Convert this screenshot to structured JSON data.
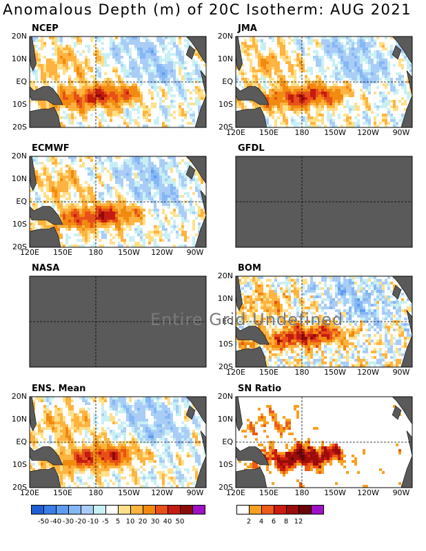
{
  "title": "Anomalous Depth (m) of 20C Isotherm: AUG 2021",
  "chart_data": [
    {
      "type": "heatmap",
      "name": "NCEP",
      "status": "data",
      "xticks": [
        "120E",
        "150E",
        "180",
        "150W",
        "120W",
        "90W"
      ],
      "yticks": [
        "20N",
        "10N",
        "EQ",
        "10S",
        "20S"
      ],
      "xtick_labels_shown": false,
      "ytick_labels_shown": true
    },
    {
      "type": "heatmap",
      "name": "JMA",
      "status": "data",
      "xticks": [
        "120E",
        "150E",
        "180",
        "150W",
        "120W",
        "90W"
      ],
      "yticks": [
        "20N",
        "10N",
        "EQ",
        "10S",
        "20S"
      ],
      "xtick_labels_shown": true,
      "ytick_labels_shown": true
    },
    {
      "type": "heatmap",
      "name": "ECMWF",
      "status": "data",
      "xticks": [
        "120E",
        "150E",
        "180",
        "150W",
        "120W",
        "90W"
      ],
      "yticks": [
        "20N",
        "10N",
        "EQ",
        "10S",
        "20S"
      ],
      "xtick_labels_shown": true,
      "ytick_labels_shown": true
    },
    {
      "type": "heatmap",
      "name": "GFDL",
      "status": "missing",
      "xticks": [
        "120E",
        "150E",
        "180",
        "150W",
        "120W",
        "90W"
      ],
      "yticks": [
        "20N",
        "10N",
        "EQ",
        "10S",
        "20S"
      ],
      "xtick_labels_shown": false,
      "ytick_labels_shown": false
    },
    {
      "type": "heatmap",
      "name": "NASA",
      "status": "missing",
      "xticks": [
        "120E",
        "150E",
        "180",
        "150W",
        "120W",
        "90W"
      ],
      "yticks": [
        "20N",
        "10N",
        "EQ",
        "10S",
        "20S"
      ],
      "xtick_labels_shown": false,
      "ytick_labels_shown": false
    },
    {
      "type": "heatmap",
      "name": "BOM",
      "status": "data",
      "xticks": [
        "120E",
        "150E",
        "180",
        "150W",
        "120W",
        "90W"
      ],
      "yticks": [
        "20N",
        "10N",
        "EQ",
        "10S",
        "20S"
      ],
      "xtick_labels_shown": true,
      "ytick_labels_shown": true
    },
    {
      "type": "heatmap",
      "name": "ENS. Mean",
      "status": "data",
      "xticks": [
        "120E",
        "150E",
        "180",
        "150W",
        "120W",
        "90W"
      ],
      "yticks": [
        "20N",
        "10N",
        "EQ",
        "10S",
        "20S"
      ],
      "xtick_labels_shown": true,
      "ytick_labels_shown": true
    },
    {
      "type": "heatmap",
      "name": "SN Ratio",
      "status": "data",
      "xticks": [
        "120E",
        "150E",
        "180",
        "150W",
        "120W",
        "90W"
      ],
      "yticks": [
        "20N",
        "10N",
        "EQ",
        "10S",
        "20S"
      ],
      "xtick_labels_shown": true,
      "ytick_labels_shown": true
    }
  ],
  "missing_note": "Entire Grid Undefined",
  "depth_colorbar": {
    "labels": [
      "-50",
      "-40",
      "-30",
      "-20",
      "-10",
      "-5",
      "5",
      "10",
      "20",
      "30",
      "40",
      "50"
    ],
    "colors": [
      "#1f5fd6",
      "#3a7fe8",
      "#5e9cf0",
      "#86b7f5",
      "#a9cdf7",
      "#c8f0f4",
      "#ffffff",
      "#ffe08a",
      "#ffb340",
      "#f28a10",
      "#e8501a",
      "#c41c10",
      "#8c0a08",
      "#a010c8"
    ]
  },
  "snr_colorbar": {
    "labels": [
      "2",
      "4",
      "6",
      "8",
      "12"
    ],
    "colors": [
      "#ffffff",
      "#f7a020",
      "#ee5a18",
      "#cc1c10",
      "#9a0d0a",
      "#6a0508",
      "#a010c8"
    ]
  },
  "colors": {
    "land": "#5a5a5a",
    "missing": "#5a5a5a"
  }
}
